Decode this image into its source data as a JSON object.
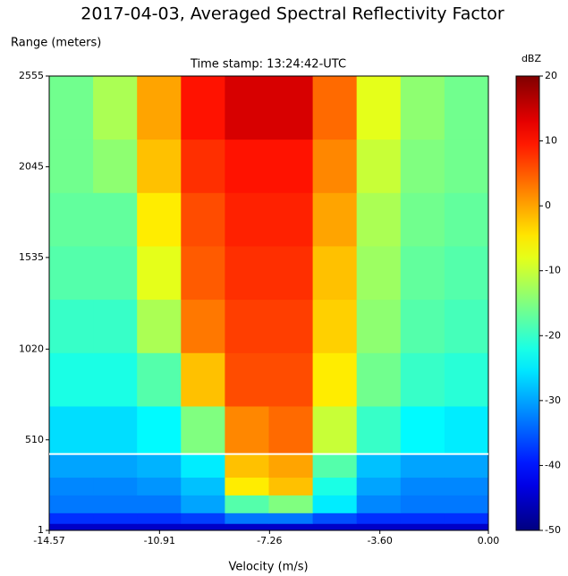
{
  "chart_data": {
    "type": "heatmap",
    "title": "2017-04-03, Averaged Spectral Reflectivity Factor",
    "subtitle": "Time stamp: 13:24:42-UTC",
    "x_label": "Velocity (m/s)",
    "y_label": "Range (meters)",
    "colorbar_label": "dBZ",
    "xlim": [
      -14.57,
      0
    ],
    "ylim": [
      1,
      2555
    ],
    "xticks": [
      -14.57,
      -10.91,
      -7.26,
      {
        "value": -3.6,
        "label": "-3.60"
      },
      {
        "value": 0,
        "label": "0.00"
      }
    ],
    "yticks": [
      1,
      510,
      1020,
      1535,
      2045,
      2555
    ],
    "clim": [
      -50,
      20
    ],
    "cticks": [
      -50,
      -40,
      -30,
      -20,
      -10,
      0,
      10,
      20
    ],
    "colormap": "jet",
    "xbins": [
      -14.57,
      -13.113,
      -11.656,
      -10.199,
      -8.742,
      -7.285,
      -5.828,
      -4.371,
      -2.914,
      -1.457,
      0
    ],
    "ybins": [
      1,
      40,
      100,
      200,
      300,
      430,
      700,
      1000,
      1300,
      1600,
      1900,
      2200,
      2555
    ],
    "z": [
      [
        -45,
        -45,
        -45,
        -45,
        -45,
        -45,
        -45,
        -45,
        -45,
        -45
      ],
      [
        -38,
        -38,
        -38,
        -37,
        -33,
        -33,
        -36,
        -38,
        -38,
        -38
      ],
      [
        -33,
        -33,
        -33,
        -30,
        -18,
        -15,
        -25,
        -32,
        -33,
        -33
      ],
      [
        -32,
        -32,
        -31,
        -28,
        -5,
        -2,
        -22,
        -30,
        -32,
        -32
      ],
      [
        -30,
        -30,
        -29,
        -25,
        -2,
        0,
        -18,
        -28,
        -30,
        -30
      ],
      [
        -26,
        -26,
        -24,
        -15,
        2,
        4,
        -10,
        -20,
        -24,
        -25
      ],
      [
        -22,
        -22,
        -18,
        -2,
        6,
        6,
        -5,
        -16,
        -20,
        -21
      ],
      [
        -20,
        -20,
        -12,
        3,
        7,
        7,
        -3,
        -14,
        -18,
        -19
      ],
      [
        -18,
        -18,
        -8,
        5,
        8,
        8,
        -2,
        -13,
        -17,
        -18
      ],
      [
        -17,
        -17,
        -5,
        6,
        9,
        9,
        0,
        -12,
        -16,
        -17
      ],
      [
        -16,
        -14,
        -2,
        8,
        10,
        10,
        2,
        -10,
        -15,
        -16
      ],
      [
        -16,
        -12,
        0,
        10,
        14,
        14,
        4,
        -8,
        -14,
        -16
      ]
    ],
    "hline": {
      "value": 430,
      "color": "#ffffff"
    }
  }
}
